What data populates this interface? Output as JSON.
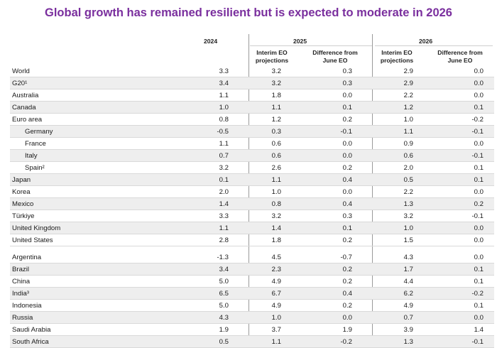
{
  "title": "Global growth has remained resilient but is expected to moderate in 2026",
  "header": {
    "year_2024": "2024",
    "year_2025": "2025",
    "year_2026": "2026",
    "interim_line1": "Interim EO",
    "interim_line2": "projections",
    "diff_line1": "Difference from",
    "diff_line2": "June EO"
  },
  "rows": [
    {
      "label": "World",
      "v2024": "3.3",
      "p2025": "3.2",
      "d2025": "0.3",
      "p2026": "2.9",
      "d2026": "0.0"
    },
    {
      "label": "G20¹",
      "v2024": "3.4",
      "p2025": "3.2",
      "d2025": "0.3",
      "p2026": "2.9",
      "d2026": "0.0"
    },
    {
      "label": "Australia",
      "v2024": "1.1",
      "p2025": "1.8",
      "d2025": "0.0",
      "p2026": "2.2",
      "d2026": "0.0"
    },
    {
      "label": "Canada",
      "v2024": "1.0",
      "p2025": "1.1",
      "d2025": "0.1",
      "p2026": "1.2",
      "d2026": "0.1"
    },
    {
      "label": "Euro area",
      "v2024": "0.8",
      "p2025": "1.2",
      "d2025": "0.2",
      "p2026": "1.0",
      "d2026": "-0.2"
    },
    {
      "label": "Germany",
      "v2024": "-0.5",
      "p2025": "0.3",
      "d2025": "-0.1",
      "p2026": "1.1",
      "d2026": "-0.1"
    },
    {
      "label": "France",
      "v2024": "1.1",
      "p2025": "0.6",
      "d2025": "0.0",
      "p2026": "0.9",
      "d2026": "0.0"
    },
    {
      "label": "Italy",
      "v2024": "0.7",
      "p2025": "0.6",
      "d2025": "0.0",
      "p2026": "0.6",
      "d2026": "-0.1"
    },
    {
      "label": "Spain²",
      "v2024": "3.2",
      "p2025": "2.6",
      "d2025": "0.2",
      "p2026": "2.0",
      "d2026": "0.1"
    },
    {
      "label": "Japan",
      "v2024": "0.1",
      "p2025": "1.1",
      "d2025": "0.4",
      "p2026": "0.5",
      "d2026": "0.1"
    },
    {
      "label": "Korea",
      "v2024": "2.0",
      "p2025": "1.0",
      "d2025": "0.0",
      "p2026": "2.2",
      "d2026": "0.0"
    },
    {
      "label": "Mexico",
      "v2024": "1.4",
      "p2025": "0.8",
      "d2025": "0.4",
      "p2026": "1.3",
      "d2026": "0.2"
    },
    {
      "label": "Türkiye",
      "v2024": "3.3",
      "p2025": "3.2",
      "d2025": "0.3",
      "p2026": "3.2",
      "d2026": "-0.1"
    },
    {
      "label": "United Kingdom",
      "v2024": "1.1",
      "p2025": "1.4",
      "d2025": "0.1",
      "p2026": "1.0",
      "d2026": "0.0"
    },
    {
      "label": "United States",
      "v2024": "2.8",
      "p2025": "1.8",
      "d2025": "0.2",
      "p2026": "1.5",
      "d2026": "0.0"
    },
    {
      "label": "Argentina",
      "v2024": "-1.3",
      "p2025": "4.5",
      "d2025": "-0.7",
      "p2026": "4.3",
      "d2026": "0.0"
    },
    {
      "label": "Brazil",
      "v2024": "3.4",
      "p2025": "2.3",
      "d2025": "0.2",
      "p2026": "1.7",
      "d2026": "0.1"
    },
    {
      "label": "China",
      "v2024": "5.0",
      "p2025": "4.9",
      "d2025": "0.2",
      "p2026": "4.4",
      "d2026": "0.1"
    },
    {
      "label": "India³",
      "v2024": "6.5",
      "p2025": "6.7",
      "d2025": "0.4",
      "p2026": "6.2",
      "d2026": "-0.2"
    },
    {
      "label": "Indonesia",
      "v2024": "5.0",
      "p2025": "4.9",
      "d2025": "0.2",
      "p2026": "4.9",
      "d2026": "0.1"
    },
    {
      "label": "Russia",
      "v2024": "4.3",
      "p2025": "1.0",
      "d2025": "0.0",
      "p2026": "0.7",
      "d2026": "0.0"
    },
    {
      "label": "Saudi Arabia",
      "v2024": "1.9",
      "p2025": "3.7",
      "d2025": "1.9",
      "p2026": "3.9",
      "d2026": "1.4"
    },
    {
      "label": "South Africa",
      "v2024": "0.5",
      "p2025": "1.1",
      "d2025": "-0.2",
      "p2026": "1.3",
      "d2026": "-0.1"
    }
  ]
}
